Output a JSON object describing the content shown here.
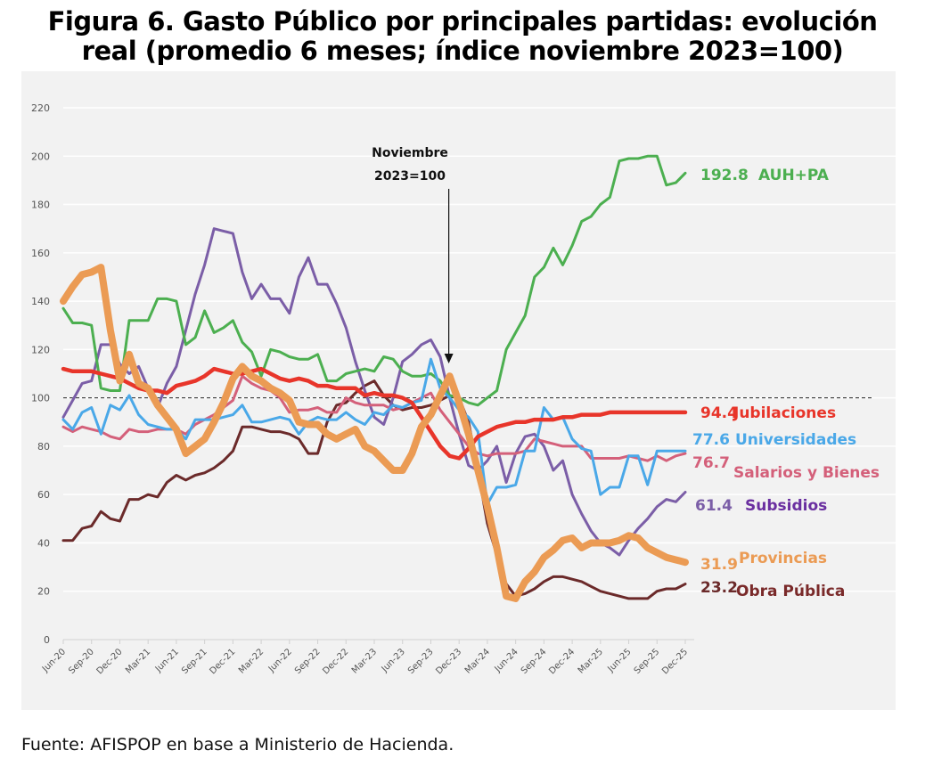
{
  "figure": {
    "title_line1": "Figura 6. Gasto Público por principales partidas: evolución",
    "title_line2": "real (promedio 6 meses; índice noviembre 2023=100)",
    "source": "Fuente: AFISPOP en base a Ministerio de Hacienda."
  },
  "chart_data": {
    "type": "line",
    "title": "Figura 6. Gasto Público por principales partidas: evolución real (promedio 6 meses; índice noviembre 2023=100)",
    "xlabel": "",
    "ylabel": "",
    "ylim": [
      0,
      220
    ],
    "yticks": [
      0,
      20,
      40,
      60,
      80,
      100,
      120,
      140,
      160,
      180,
      200,
      220
    ],
    "grid": true,
    "x_start": "Jun-20",
    "x_end": "Dec-25",
    "x_frequency": "monthly",
    "xtick_labels": [
      "Jun-20",
      "Sep-20",
      "Dec-20",
      "Mar-21",
      "Jun-21",
      "Sep-21",
      "Dec-21",
      "Mar-22",
      "Jun-22",
      "Sep-22",
      "Dec-22",
      "Mar-23",
      "Jun-23",
      "Sep-23",
      "Dec-23",
      "Mar-24",
      "Jun-24",
      "Sep-24",
      "Dec-24",
      "Mar-25",
      "Jun-25",
      "Sep-25",
      "Dec-25"
    ],
    "reference_line": {
      "value": 100,
      "style": "dashed"
    },
    "annotation": {
      "line1": "Noviembre",
      "line2": "2023=100",
      "x": "Nov-23"
    },
    "series": [
      {
        "name": "AUH+PA",
        "color": "#4caf50",
        "end_value": "192.8",
        "width": "normal",
        "values": [
          137,
          131,
          131,
          130,
          104,
          103,
          103,
          132,
          132,
          132,
          141,
          141,
          140,
          122,
          125,
          136,
          127,
          129,
          132,
          123,
          119,
          109,
          120,
          119,
          117,
          116,
          116,
          118,
          107,
          107,
          110,
          111,
          112,
          111,
          117,
          116,
          111,
          109,
          109,
          110,
          107,
          101,
          100,
          98,
          97,
          100,
          103,
          120,
          127,
          134,
          150,
          154,
          162,
          155,
          163,
          173,
          175,
          180,
          183,
          198,
          199,
          199,
          200,
          200,
          188,
          189,
          193
        ]
      },
      {
        "name": "Jubilaciones",
        "color": "#e8352a",
        "end_value": "94.4",
        "width": "thick",
        "values": [
          112,
          111,
          111,
          111,
          110,
          109,
          108,
          106,
          104,
          103,
          103,
          102,
          105,
          106,
          107,
          109,
          112,
          111,
          110,
          110,
          111,
          112,
          110,
          108,
          107,
          108,
          107,
          105,
          105,
          104,
          104,
          104,
          101,
          102,
          101,
          101,
          100,
          98,
          92,
          86,
          80,
          76,
          75,
          79,
          84,
          86,
          88,
          89,
          90,
          90,
          91,
          91,
          91,
          92,
          92,
          93,
          93,
          93,
          94,
          94,
          94,
          94,
          94,
          94,
          94,
          94,
          94
        ]
      },
      {
        "name": "Universidades",
        "color": "#4aa8e8",
        "end_value": "77.6",
        "width": "normal",
        "values": [
          91,
          87,
          94,
          96,
          85,
          97,
          95,
          101,
          93,
          89,
          88,
          87,
          87,
          83,
          91,
          91,
          91,
          92,
          93,
          97,
          90,
          90,
          91,
          92,
          91,
          85,
          90,
          92,
          91,
          91,
          94,
          91,
          89,
          94,
          93,
          97,
          96,
          98,
          99,
          116,
          104,
          100,
          95,
          92,
          86,
          56,
          63,
          63,
          64,
          78,
          78,
          96,
          91,
          92,
          83,
          79,
          78,
          60,
          63,
          63,
          76,
          76,
          64,
          78,
          78,
          78,
          78
        ]
      },
      {
        "name": "Salarios y Bienes",
        "color": "#d4607a",
        "end_value": "76.7",
        "width": "normal",
        "values": [
          88,
          86,
          88,
          87,
          86,
          84,
          83,
          87,
          86,
          86,
          87,
          87,
          87,
          85,
          89,
          91,
          93,
          96,
          99,
          109,
          106,
          104,
          103,
          100,
          94,
          95,
          95,
          96,
          94,
          94,
          100,
          98,
          97,
          97,
          97,
          95,
          96,
          98,
          100,
          102,
          95,
          90,
          85,
          80,
          77,
          76,
          77,
          77,
          77,
          78,
          83,
          82,
          81,
          80,
          80,
          80,
          75,
          75,
          75,
          75,
          76,
          75,
          74,
          76,
          74,
          76,
          77
        ]
      },
      {
        "name": "Subsidios",
        "color": "#7b5ea7",
        "end_value": "61.4",
        "width": "normal",
        "values": [
          92,
          99,
          106,
          107,
          122,
          122,
          114,
          110,
          113,
          104,
          96,
          106,
          113,
          128,
          143,
          155,
          170,
          169,
          168,
          152,
          141,
          147,
          141,
          141,
          135,
          150,
          158,
          147,
          147,
          139,
          129,
          115,
          103,
          92,
          89,
          100,
          115,
          118,
          122,
          124,
          117,
          100,
          85,
          72,
          70,
          74,
          80,
          65,
          77,
          84,
          85,
          80,
          70,
          74,
          60,
          52,
          45,
          40,
          38,
          35,
          41,
          46,
          50,
          55,
          58,
          57,
          61
        ]
      },
      {
        "name": "Provincias",
        "color": "#eb9b54",
        "end_value": "31.9",
        "width": "thickest",
        "values": [
          140,
          146,
          151,
          152,
          154,
          128,
          107,
          118,
          106,
          104,
          97,
          92,
          87,
          77,
          80,
          83,
          90,
          98,
          108,
          113,
          109,
          107,
          104,
          102,
          99,
          90,
          89,
          89,
          85,
          83,
          85,
          87,
          80,
          78,
          74,
          70,
          70,
          77,
          88,
          93,
          101,
          109,
          98,
          85,
          70,
          55,
          38,
          18,
          17,
          24,
          28,
          34,
          37,
          41,
          42,
          38,
          40,
          40,
          40,
          41,
          43,
          42,
          38,
          36,
          34,
          33,
          32
        ]
      },
      {
        "name": "Obra Pública",
        "color": "#6b2a2a",
        "end_value": "23.2",
        "width": "normal",
        "values": [
          41,
          41,
          46,
          47,
          53,
          50,
          49,
          58,
          58,
          60,
          59,
          65,
          68,
          66,
          68,
          69,
          71,
          74,
          78,
          88,
          88,
          87,
          86,
          86,
          85,
          83,
          77,
          77,
          90,
          97,
          98,
          102,
          105,
          107,
          101,
          97,
          95,
          96,
          96,
          97,
          99,
          101,
          100,
          90,
          70,
          48,
          35,
          23,
          18,
          19,
          21,
          24,
          26,
          26,
          25,
          24,
          22,
          20,
          19,
          18,
          17,
          17,
          17,
          20,
          21,
          21,
          23
        ]
      }
    ]
  }
}
